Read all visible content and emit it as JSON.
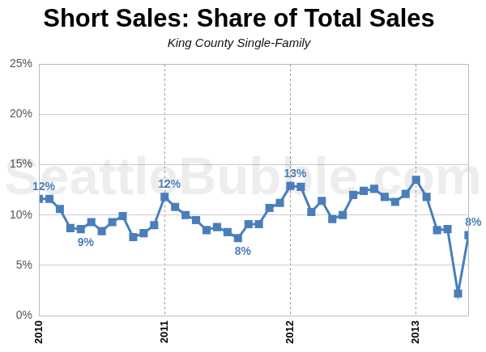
{
  "chart_data": {
    "type": "line",
    "title": "Short Sales: Share of Total Sales",
    "subtitle": "King County Single-Family",
    "watermark": "SeattleBubble.com",
    "categories": [
      "2010",
      null,
      null,
      null,
      null,
      null,
      null,
      null,
      null,
      null,
      null,
      null,
      "2011",
      null,
      null,
      null,
      null,
      null,
      null,
      null,
      null,
      null,
      null,
      null,
      "2012",
      null,
      null,
      null,
      null,
      null,
      null,
      null,
      null,
      null,
      null,
      null,
      "2013",
      null,
      null,
      null,
      null,
      null
    ],
    "values": [
      11.6,
      11.6,
      10.6,
      8.7,
      8.6,
      9.3,
      8.4,
      9.3,
      9.9,
      7.8,
      8.2,
      9.0,
      11.8,
      10.8,
      10.0,
      9.5,
      8.5,
      8.8,
      8.3,
      7.7,
      9.1,
      9.1,
      10.7,
      11.2,
      12.9,
      12.8,
      10.3,
      11.4,
      9.6,
      10.0,
      12.0,
      12.4,
      12.6,
      11.8,
      11.3,
      12.1,
      13.5,
      11.8,
      8.5,
      8.6,
      2.2,
      8.0
    ],
    "value_labels": [
      "12%",
      null,
      null,
      null,
      "9%",
      null,
      null,
      null,
      null,
      null,
      null,
      null,
      "12%",
      null,
      null,
      null,
      null,
      null,
      null,
      "8%",
      null,
      null,
      null,
      null,
      "13%",
      null,
      null,
      null,
      null,
      null,
      null,
      null,
      null,
      null,
      null,
      null,
      null,
      null,
      null,
      null,
      null,
      "8%"
    ],
    "data_labels": true,
    "color": "#4a7ebb",
    "marker": "square",
    "line_style": "solid",
    "ylim": [
      0,
      25
    ],
    "yticks": [
      {
        "value": 0,
        "label": "0%"
      },
      {
        "value": 5,
        "label": "5%"
      },
      {
        "value": 10,
        "label": "10%"
      },
      {
        "value": 15,
        "label": "15%"
      },
      {
        "value": 20,
        "label": "20%"
      },
      {
        "value": 25,
        "label": "25%"
      }
    ],
    "grid": true
  }
}
